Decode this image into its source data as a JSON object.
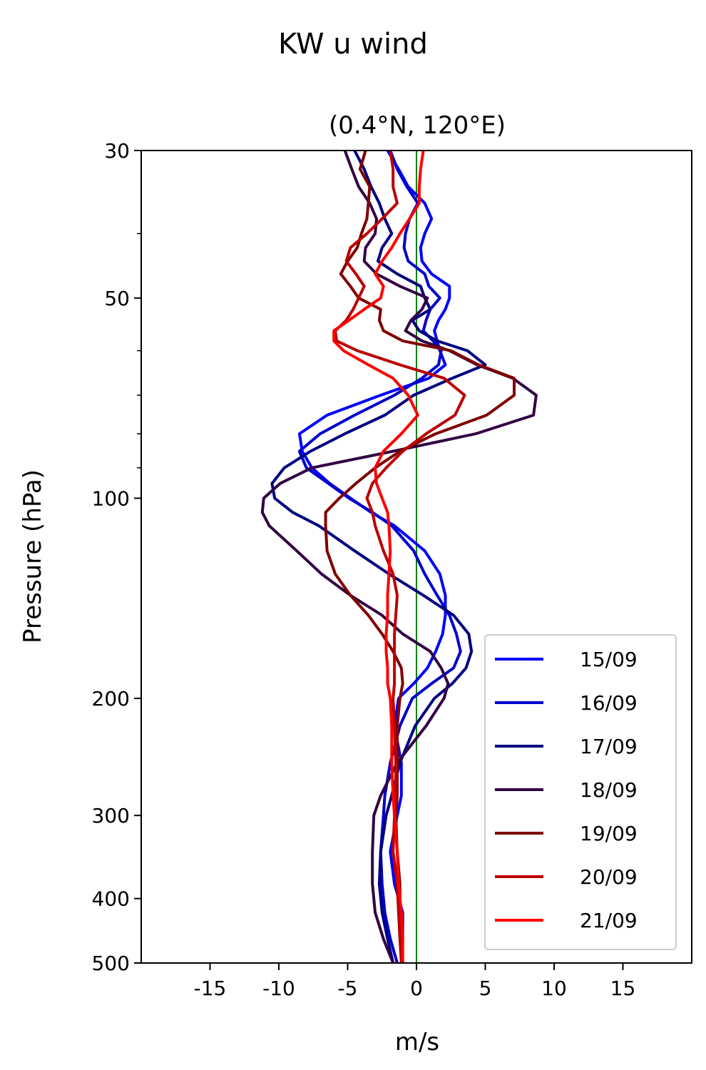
{
  "chart_data": {
    "type": "line",
    "title": "KW u wind",
    "subtitle": "(0.4°N, 120°E)",
    "xlabel": "m/s",
    "ylabel": "Pressure (hPa)",
    "xlim": [
      -20,
      20
    ],
    "ylim": [
      500,
      30
    ],
    "y_scale": "log",
    "x_ticks": [
      -15,
      -10,
      -5,
      0,
      5,
      10,
      15
    ],
    "y_ticks": [
      30,
      50,
      100,
      200,
      300,
      400,
      500
    ],
    "y_minor_ticks": [
      40,
      60,
      70,
      80,
      90
    ],
    "zero_line_color": "#008000",
    "legend_position": "lower-right",
    "grid": false,
    "pressure_levels": [
      30,
      32,
      34,
      36,
      38,
      40,
      42,
      44,
      46,
      48,
      50,
      52,
      54,
      56,
      58,
      60,
      63,
      66,
      70,
      75,
      80,
      85,
      90,
      95,
      100,
      105,
      110,
      120,
      130,
      140,
      150,
      160,
      170,
      180,
      190,
      200,
      220,
      250,
      280,
      300,
      340,
      380,
      420,
      460,
      500
    ],
    "series": [
      {
        "name": "15/09",
        "color": "#0000ff",
        "values": [
          -2.1,
          -1.3,
          -0.6,
          0.6,
          1.1,
          0.6,
          0.3,
          0.4,
          1.1,
          2.4,
          2.4,
          2.1,
          1.6,
          1.3,
          1.5,
          1.7,
          2.1,
          0.9,
          -2.6,
          -6.5,
          -8.5,
          -8.3,
          -7.6,
          -6.3,
          -4.8,
          -3.3,
          -1.6,
          0.6,
          1.7,
          2.1,
          2.1,
          1.9,
          1.4,
          0.8,
          -0.2,
          -1.3,
          -1.6,
          -1.1,
          -1.1,
          -1.4,
          -1.9,
          -1.6,
          -1.0,
          -1.0,
          -1.1
        ]
      },
      {
        "name": "16/09",
        "color": "#0000cc",
        "values": [
          -1.9,
          -1.4,
          -0.7,
          0.1,
          -0.5,
          -0.8,
          -0.9,
          -0.6,
          0.6,
          0.9,
          1.7,
          1.0,
          0.7,
          0.5,
          1.2,
          1.8,
          1.6,
          0.4,
          -1.6,
          -4.5,
          -7.0,
          -8.5,
          -8.0,
          -6.4,
          -4.9,
          -3.2,
          -1.8,
          -0.2,
          0.6,
          1.5,
          2.4,
          2.9,
          3.2,
          2.7,
          1.1,
          -0.3,
          -1.2,
          -1.9,
          -2.3,
          -2.4,
          -2.6,
          -2.5,
          -2.3,
          -1.9,
          -1.4
        ]
      },
      {
        "name": "17/09",
        "color": "#000080",
        "values": [
          -4.5,
          -3.8,
          -3.3,
          -2.7,
          -2.3,
          -1.8,
          -2.5,
          -2.8,
          -1.4,
          0.3,
          0.6,
          1.0,
          -0.3,
          0.2,
          1.5,
          3.7,
          5.0,
          2.6,
          -0.2,
          -2.3,
          -5.2,
          -7.7,
          -9.6,
          -10.5,
          -10.3,
          -9.0,
          -7.1,
          -4.5,
          -2.0,
          0.5,
          2.7,
          3.8,
          4.0,
          3.6,
          2.6,
          1.3,
          -0.1,
          -1.2,
          -1.8,
          -2.2,
          -2.6,
          -2.7,
          -2.5,
          -2.1,
          -1.7
        ]
      },
      {
        "name": "18/09",
        "color": "#330044",
        "values": [
          -5.2,
          -4.7,
          -4.2,
          -3.4,
          -2.9,
          -3.0,
          -3.7,
          -3.8,
          -2.9,
          -1.2,
          0.8,
          0.4,
          -0.4,
          -0.8,
          0.4,
          2.4,
          4.4,
          7.0,
          8.7,
          8.5,
          4.3,
          -1.7,
          -7.6,
          -9.9,
          -11.1,
          -11.2,
          -10.7,
          -8.7,
          -6.9,
          -4.8,
          -2.5,
          -1.0,
          1.0,
          1.8,
          2.3,
          2.0,
          0.7,
          -1.4,
          -2.6,
          -3.1,
          -3.2,
          -3.2,
          -3.0,
          -2.4,
          -1.7
        ]
      },
      {
        "name": "19/09",
        "color": "#800000",
        "values": [
          -3.7,
          -4.1,
          -3.4,
          -3.5,
          -3.6,
          -4.0,
          -4.3,
          -5.0,
          -5.5,
          -4.8,
          -4.2,
          -2.6,
          -2.7,
          -2.4,
          -1.0,
          2.5,
          4.5,
          7.1,
          7.1,
          5.1,
          1.4,
          -1.2,
          -3.0,
          -4.4,
          -5.6,
          -6.6,
          -6.6,
          -6.5,
          -5.9,
          -4.8,
          -3.5,
          -2.5,
          -1.7,
          -1.1,
          -1.0,
          -1.2,
          -1.4,
          -1.4,
          -1.4,
          -1.5,
          -1.4,
          -1.2,
          -1.2,
          -1.1,
          -1.0
        ]
      },
      {
        "name": "20/09",
        "color": "#bb0000",
        "values": [
          -1.9,
          -1.7,
          -1.7,
          -1.4,
          -2.5,
          -3.6,
          -4.8,
          -5.1,
          -4.4,
          -3.8,
          -4.2,
          -4.6,
          -5.1,
          -5.9,
          -5.8,
          -4.3,
          -1.2,
          2.0,
          3.5,
          2.8,
          0.7,
          -1.0,
          -2.2,
          -3.2,
          -3.6,
          -3.2,
          -3.0,
          -2.4,
          -1.7,
          -1.4,
          -1.5,
          -1.6,
          -1.6,
          -1.6,
          -1.6,
          -1.7,
          -1.6,
          -1.5,
          -1.5,
          -1.6,
          -1.7,
          -1.4,
          -1.3,
          -1.2,
          -1.1
        ]
      },
      {
        "name": "21/09",
        "color": "#ff0000",
        "values": [
          0.5,
          0.3,
          0.2,
          0.2,
          -0.5,
          -1.2,
          -1.8,
          -2.5,
          -3.0,
          -2.4,
          -2.6,
          -3.8,
          -4.9,
          -6.0,
          -6.0,
          -5.3,
          -3.5,
          -1.7,
          -0.6,
          0.1,
          -1.1,
          -2.4,
          -3.0,
          -2.9,
          -2.5,
          -2.1,
          -2.0,
          -1.9,
          -2.0,
          -2.1,
          -2.1,
          -2.2,
          -2.2,
          -2.1,
          -2.1,
          -1.9,
          -1.8,
          -1.8,
          -1.7,
          -1.6,
          -1.4,
          -1.3,
          -1.1,
          -1.0,
          -1.0
        ]
      }
    ]
  }
}
